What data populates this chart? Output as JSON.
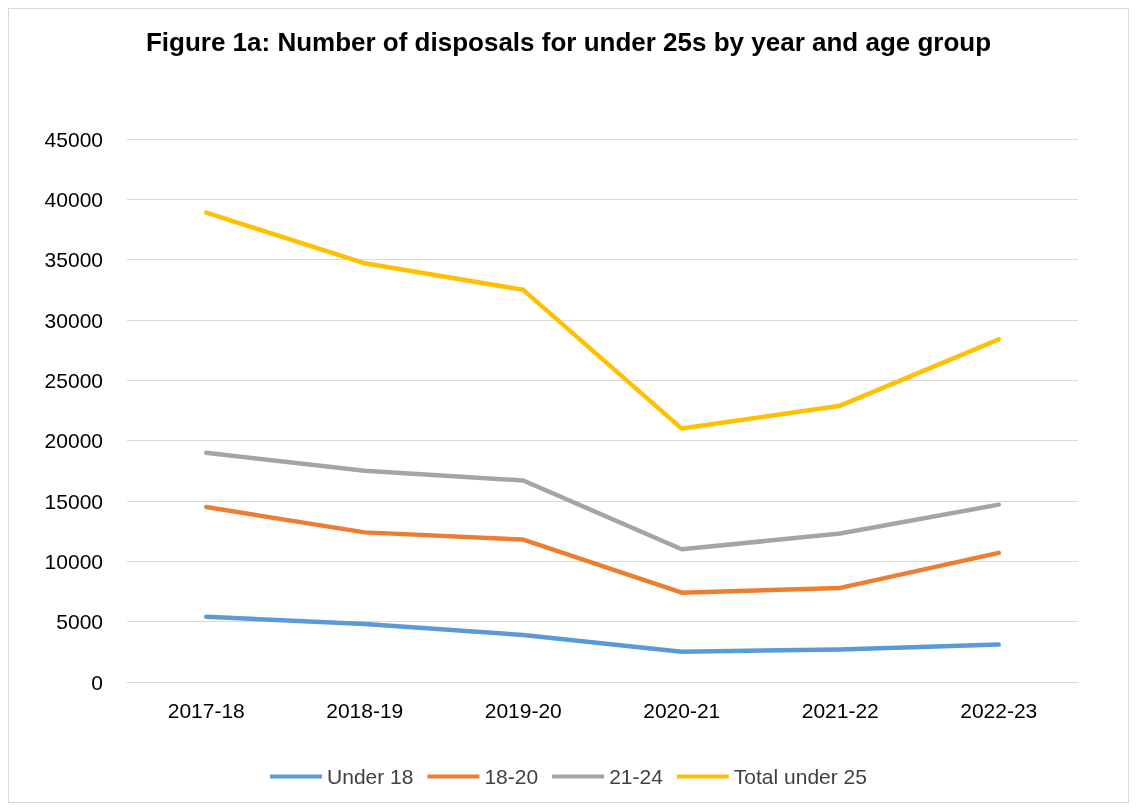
{
  "chart_data": {
    "type": "line",
    "title": "Figure 1a: Number of disposals for under 25s by year and age group",
    "categories": [
      "2017-18",
      "2018-19",
      "2019-20",
      "2020-21",
      "2021-22",
      "2022-23"
    ],
    "series": [
      {
        "name": "Under 18",
        "color": "#5b9bd5",
        "values": [
          5400,
          4800,
          3900,
          2500,
          2700,
          3100
        ]
      },
      {
        "name": "18-20",
        "color": "#ed7d31",
        "values": [
          14500,
          12400,
          11800,
          7400,
          7800,
          10700
        ]
      },
      {
        "name": "21-24",
        "color": "#a5a5a5",
        "values": [
          19000,
          17500,
          16700,
          11000,
          12300,
          14700
        ]
      },
      {
        "name": "Total under 25",
        "color": "#ffc000",
        "values": [
          38900,
          34700,
          32500,
          21000,
          22900,
          28400
        ]
      }
    ],
    "ylim": [
      0,
      45000
    ],
    "yticks": [
      0,
      5000,
      10000,
      15000,
      20000,
      25000,
      30000,
      35000,
      40000,
      45000
    ],
    "grid": "y",
    "legend": "bottom",
    "marker": "none",
    "line_style": "solid"
  }
}
